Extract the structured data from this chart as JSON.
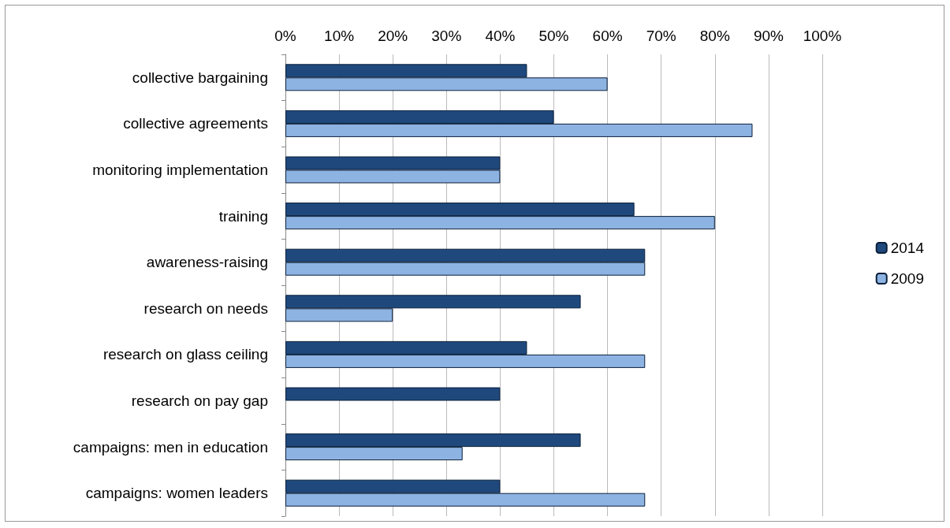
{
  "chart_data": {
    "type": "bar",
    "orientation": "horizontal",
    "categories": [
      "collective bargaining",
      "collective agreements",
      "monitoring implementation",
      "training",
      "awareness-raising",
      "research on needs",
      "research on glass ceiling",
      "research on pay gap",
      "campaigns: men in education",
      "campaigns: women leaders"
    ],
    "series": [
      {
        "name": "2014",
        "color": "#1f497d",
        "values": [
          45,
          50,
          40,
          65,
          67,
          55,
          45,
          40,
          55,
          40
        ]
      },
      {
        "name": "2009",
        "color": "#8db3e2",
        "values": [
          60,
          87,
          40,
          80,
          67,
          20,
          67,
          null,
          33,
          67
        ]
      }
    ],
    "xlim": [
      0,
      100
    ],
    "xticks": [
      {
        "value": 0,
        "label": "0%"
      },
      {
        "value": 10,
        "label": "10%"
      },
      {
        "value": 20,
        "label": "20%"
      },
      {
        "value": 30,
        "label": "30%"
      },
      {
        "value": 40,
        "label": "40%"
      },
      {
        "value": 50,
        "label": "50%"
      },
      {
        "value": 60,
        "label": "60%"
      },
      {
        "value": 70,
        "label": "70%"
      },
      {
        "value": 80,
        "label": "80%"
      },
      {
        "value": 90,
        "label": "90%"
      },
      {
        "value": 100,
        "label": "100%"
      }
    ],
    "grid": "x",
    "legend": "right"
  }
}
